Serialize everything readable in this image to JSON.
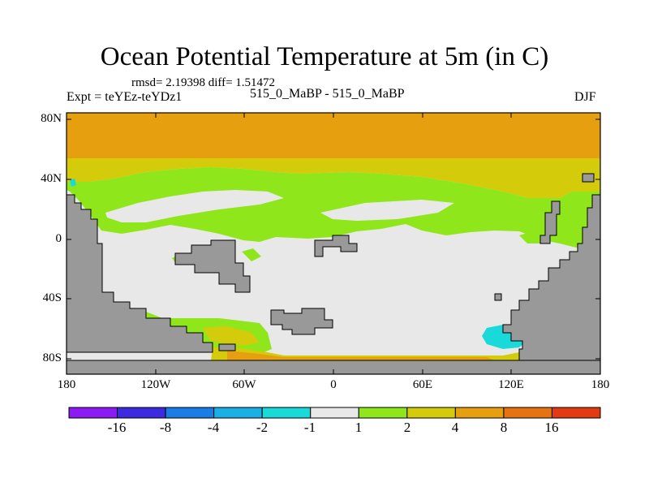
{
  "title": "Ocean Potential Temperature at 5m (in C)",
  "stats": "rmsd= 2.19398 diff= 1.51472",
  "expt": "Expt = teYEz-teYDz1",
  "experiment_names": "515_0_MaBP - 515_0_MaBP",
  "season": "DJF",
  "lat_ticks": [
    "80N",
    "40N",
    "0",
    "40S",
    "80S"
  ],
  "lon_ticks": [
    "180",
    "120W",
    "60W",
    "0",
    "60E",
    "120E",
    "180"
  ],
  "colorbar": {
    "labels": [
      "-16",
      "-8",
      "-4",
      "-2",
      "-1",
      "1",
      "2",
      "4",
      "8",
      "16"
    ],
    "colors": [
      "#8b1bf2",
      "#3c2ae0",
      "#1a7de6",
      "#1ab0e6",
      "#1ad9d9",
      "#e8e8e8",
      "#8fe61a",
      "#d4cc0a",
      "#e6a00f",
      "#e67312",
      "#e23a12"
    ]
  },
  "map_colors": {
    "land": "#999999",
    "band_lt_1": "#e8e8e8",
    "band_1_2": "#8fe61a",
    "band_2_4": "#d4cc0a",
    "band_4_8": "#e6a00f",
    "band_neg_2_1": "#1ad9d9"
  }
}
